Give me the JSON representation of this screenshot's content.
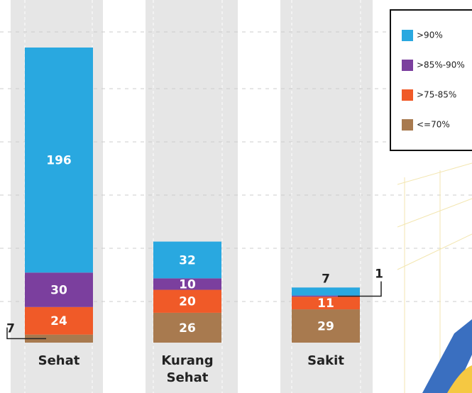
{
  "chart_data": {
    "type": "bar",
    "stacked": true,
    "categories": [
      "Sehat",
      "Kurang Sehat",
      "Sakit"
    ],
    "series": [
      {
        "name": ">90%",
        "color": "#29a8e0",
        "values": [
          196,
          32,
          7
        ]
      },
      {
        "name": ">85%-90%",
        "color": "#7b3f9e",
        "values": [
          30,
          10,
          1
        ]
      },
      {
        "name": ">75-85%",
        "color": "#f05a28",
        "values": [
          24,
          20,
          11
        ]
      },
      {
        "name": "<=70%",
        "color": "#a87a4f",
        "values": [
          7,
          26,
          29
        ]
      }
    ]
  }
}
